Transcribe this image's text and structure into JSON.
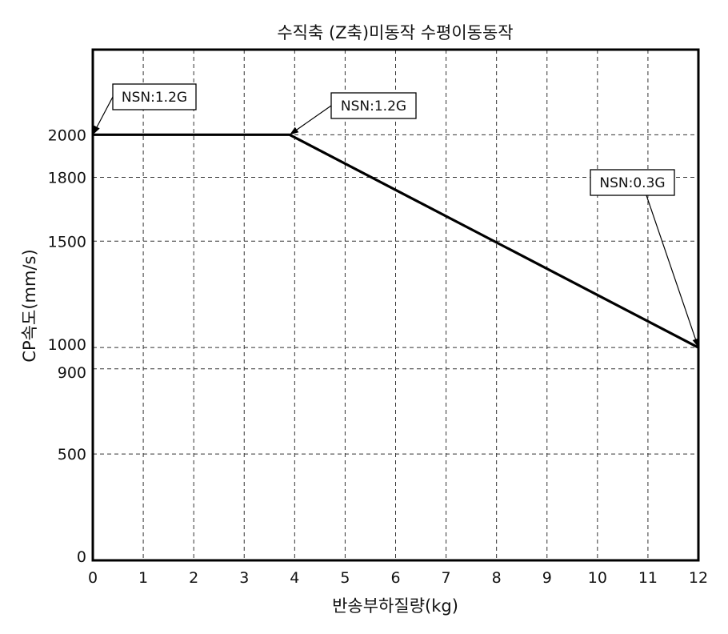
{
  "chart_data": {
    "type": "line",
    "title": "수직축 (Z축)미동작 수평이동동작",
    "xlabel": "반송부하질량(kg)",
    "ylabel": "CP속도(mm/s)",
    "xlim": [
      0,
      12
    ],
    "ylim": [
      0,
      2400
    ],
    "xticks": [
      0,
      1,
      2,
      3,
      4,
      5,
      6,
      7,
      8,
      9,
      10,
      11,
      12
    ],
    "yticks": [
      0,
      500,
      900,
      1000,
      1500,
      1800,
      2000
    ],
    "grid": true,
    "series": [
      {
        "x": [
          0,
          3.9,
          12
        ],
        "y": [
          2000,
          2000,
          1000
        ],
        "color": "#000000"
      }
    ],
    "annotations": [
      {
        "text": "NSN:1.2G",
        "x": 0,
        "y": 2000
      },
      {
        "text": "NSN:1.2G",
        "x": 3.9,
        "y": 2000
      },
      {
        "text": "NSN:0.3G",
        "x": 12,
        "y": 1000
      }
    ]
  }
}
